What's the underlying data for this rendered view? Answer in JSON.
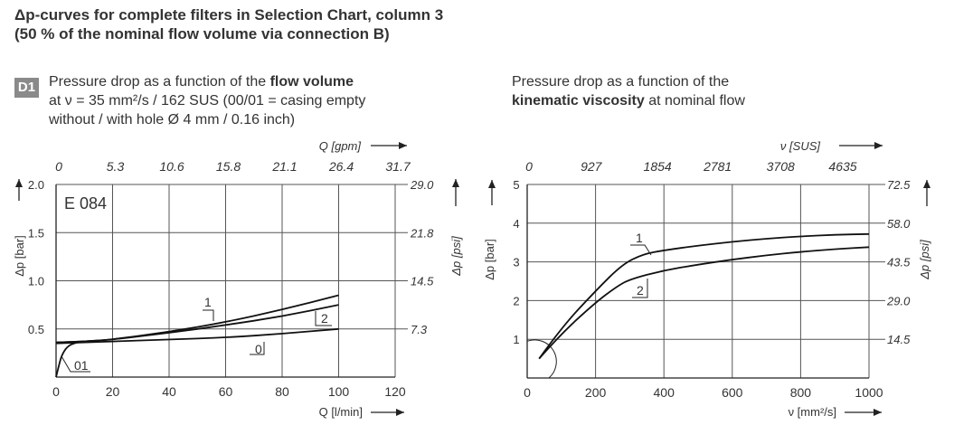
{
  "header": {
    "line1": "Δp-curves for complete filters in Selection Chart, column 3",
    "line2": "(50 % of the nominal flow volume via connection B)"
  },
  "badge": "D1",
  "caption_left": {
    "line1_pre": "Pressure drop as a function of the ",
    "line1_bold": "flow volume",
    "line2": "at ν = 35 mm²/s / 162 SUS (00/01 = casing empty",
    "line3": "without / with hole Ø 4 mm / 0.16 inch)"
  },
  "caption_right": {
    "line1": "Pressure drop as a function of the",
    "line2_bold": "kinematic viscosity",
    "line2_post": " at nominal flow"
  },
  "chart_data": [
    {
      "type": "line",
      "model_label": "E 084",
      "xlabel": "Q [l/min]",
      "x_ticks": [
        "0",
        "20",
        "40",
        "60",
        "80",
        "100",
        "120"
      ],
      "xlim": [
        0,
        120
      ],
      "x2label": "Q [gpm]",
      "x2_ticks": [
        "0",
        "5.3",
        "10.6",
        "15.8",
        "21.1",
        "26.4",
        "31.7"
      ],
      "ylabel": "Δp [bar]",
      "y_ticks": [
        "0.5",
        "1.0",
        "1.5",
        "2.0"
      ],
      "ylim": [
        0,
        2.0
      ],
      "y2label": "Δp [psi]",
      "y2_ticks": [
        "7.3",
        "14.5",
        "21.8",
        "29.0"
      ],
      "grid": true,
      "series": [
        {
          "name": "1",
          "points": [
            [
              0,
              0.36
            ],
            [
              10,
              0.37
            ],
            [
              20,
              0.39
            ],
            [
              40,
              0.47
            ],
            [
              60,
              0.57
            ],
            [
              80,
              0.7
            ],
            [
              100,
              0.85
            ]
          ]
        },
        {
          "name": "2",
          "points": [
            [
              0,
              0.36
            ],
            [
              10,
              0.37
            ],
            [
              20,
              0.39
            ],
            [
              40,
              0.46
            ],
            [
              60,
              0.54
            ],
            [
              80,
              0.63
            ],
            [
              100,
              0.75
            ]
          ]
        },
        {
          "name": "0",
          "points": [
            [
              0,
              0.35
            ],
            [
              10,
              0.36
            ],
            [
              20,
              0.37
            ],
            [
              40,
              0.39
            ],
            [
              60,
              0.41
            ],
            [
              80,
              0.45
            ],
            [
              100,
              0.5
            ]
          ]
        },
        {
          "name": "01",
          "points": [
            [
              0,
              0.0
            ],
            [
              1,
              0.12
            ],
            [
              2,
              0.23
            ],
            [
              4,
              0.32
            ],
            [
              7,
              0.36
            ],
            [
              10,
              0.37
            ]
          ]
        }
      ]
    },
    {
      "type": "line",
      "xlabel": "ν  [mm²/s]",
      "x_ticks": [
        "0",
        "200",
        "400",
        "600",
        "800",
        "1000"
      ],
      "xlim": [
        0,
        1000
      ],
      "x2label": "ν  [SUS]",
      "x2_ticks": [
        "0",
        "927",
        "1854",
        "2781",
        "3708",
        "4635"
      ],
      "ylabel": "Δp [bar]",
      "y_ticks": [
        "1",
        "2",
        "3",
        "4",
        "5"
      ],
      "ylim": [
        0,
        5
      ],
      "y2label": "Δp [psi]",
      "y2_ticks": [
        "14.5",
        "29.0",
        "43.5",
        "58.0",
        "72.5"
      ],
      "grid": true,
      "series": [
        {
          "name": "1",
          "points": [
            [
              35,
              0.5
            ],
            [
              100,
              1.3
            ],
            [
              200,
              2.25
            ],
            [
              280,
              2.95
            ],
            [
              340,
              3.2
            ],
            [
              400,
              3.3
            ],
            [
              500,
              3.42
            ],
            [
              600,
              3.52
            ],
            [
              700,
              3.6
            ],
            [
              800,
              3.66
            ],
            [
              900,
              3.7
            ],
            [
              1000,
              3.72
            ]
          ]
        },
        {
          "name": "2",
          "points": [
            [
              35,
              0.5
            ],
            [
              100,
              1.15
            ],
            [
              200,
              1.95
            ],
            [
              260,
              2.35
            ],
            [
              300,
              2.55
            ],
            [
              400,
              2.78
            ],
            [
              500,
              2.93
            ],
            [
              600,
              3.06
            ],
            [
              700,
              3.17
            ],
            [
              800,
              3.26
            ],
            [
              900,
              3.33
            ],
            [
              1000,
              3.38
            ]
          ]
        }
      ]
    }
  ]
}
